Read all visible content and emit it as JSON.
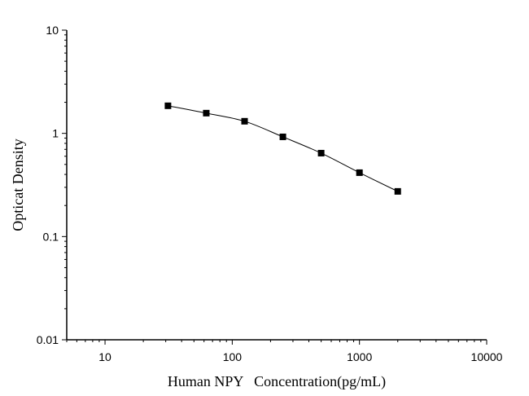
{
  "chart_data": {
    "type": "line",
    "title": "",
    "xlabel": "Human NPY   Concentration(pg/mL)",
    "ylabel": "Opticat Density",
    "xscale": "log",
    "yscale": "log",
    "xlim": [
      5,
      10000
    ],
    "ylim": [
      0.01,
      10
    ],
    "xticks": [
      10,
      100,
      1000,
      10000
    ],
    "xtick_labels": [
      "10",
      "100",
      "1000",
      "10000"
    ],
    "yticks": [
      0.01,
      0.1,
      1,
      10
    ],
    "ytick_labels": [
      "0.01",
      "0.1",
      "1",
      "10"
    ],
    "grid": false,
    "marker": "square",
    "color": "#000000",
    "series": [
      {
        "x": [
          31.25,
          62.5,
          125,
          250,
          500,
          1000,
          2000
        ],
        "y": [
          1.85,
          1.57,
          1.31,
          0.925,
          0.643,
          0.416,
          0.274
        ]
      }
    ]
  }
}
